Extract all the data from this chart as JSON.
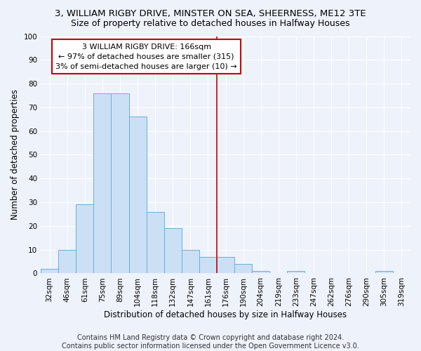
{
  "title": "3, WILLIAM RIGBY DRIVE, MINSTER ON SEA, SHEERNESS, ME12 3TE",
  "subtitle": "Size of property relative to detached houses in Halfway Houses",
  "xlabel": "Distribution of detached houses by size in Halfway Houses",
  "ylabel": "Number of detached properties",
  "bar_color": "#cce0f5",
  "bar_edge_color": "#6aaed6",
  "background_color": "#eef2fb",
  "grid_color": "#d0d8ee",
  "categories": [
    "32sqm",
    "46sqm",
    "61sqm",
    "75sqm",
    "89sqm",
    "104sqm",
    "118sqm",
    "132sqm",
    "147sqm",
    "161sqm",
    "176sqm",
    "190sqm",
    "204sqm",
    "219sqm",
    "233sqm",
    "247sqm",
    "262sqm",
    "276sqm",
    "290sqm",
    "305sqm",
    "319sqm"
  ],
  "values": [
    2,
    10,
    29,
    76,
    76,
    66,
    26,
    19,
    10,
    7,
    7,
    4,
    1,
    0,
    1,
    0,
    0,
    0,
    0,
    1,
    0
  ],
  "ylim": [
    0,
    100
  ],
  "yticks": [
    0,
    10,
    20,
    30,
    40,
    50,
    60,
    70,
    80,
    90,
    100
  ],
  "property_line_x": 9.5,
  "annotation_text": "3 WILLIAM RIGBY DRIVE: 166sqm\n← 97% of detached houses are smaller (315)\n3% of semi-detached houses are larger (10) →",
  "annotation_box_color": "#ffffff",
  "annotation_border_color": "#cc0000",
  "footer": "Contains HM Land Registry data © Crown copyright and database right 2024.\nContains public sector information licensed under the Open Government Licence v3.0.",
  "vline_color": "#cc0000",
  "title_fontsize": 9.5,
  "subtitle_fontsize": 9,
  "axis_label_fontsize": 8.5,
  "tick_fontsize": 7.5,
  "footer_fontsize": 7,
  "annotation_fontsize": 8
}
